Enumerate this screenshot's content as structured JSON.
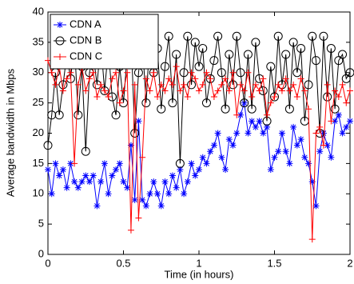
{
  "chart_data": {
    "type": "line",
    "xlabel": "Time (in hours)",
    "ylabel": "Average bandwidth in Mbps",
    "x": [
      0,
      0.025,
      0.05,
      0.075,
      0.1,
      0.125,
      0.15,
      0.175,
      0.2,
      0.225,
      0.25,
      0.275,
      0.3,
      0.325,
      0.35,
      0.375,
      0.4,
      0.425,
      0.45,
      0.475,
      0.5,
      0.525,
      0.55,
      0.575,
      0.6,
      0.625,
      0.65,
      0.675,
      0.7,
      0.725,
      0.75,
      0.775,
      0.8,
      0.825,
      0.85,
      0.875,
      0.9,
      0.925,
      0.95,
      0.975,
      1,
      1.025,
      1.05,
      1.075,
      1.1,
      1.125,
      1.15,
      1.175,
      1.2,
      1.225,
      1.25,
      1.275,
      1.3,
      1.325,
      1.35,
      1.375,
      1.4,
      1.425,
      1.45,
      1.475,
      1.5,
      1.525,
      1.55,
      1.575,
      1.6,
      1.625,
      1.65,
      1.675,
      1.7,
      1.725,
      1.75,
      1.775,
      1.8,
      1.825,
      1.85,
      1.875,
      1.9,
      1.925,
      1.95,
      1.975,
      2
    ],
    "series": [
      {
        "name": "CDN A",
        "color": "#0000ff",
        "marker": "asterisk",
        "values": [
          14,
          10,
          15,
          13,
          14,
          11,
          15,
          12,
          11,
          12,
          13,
          12,
          13,
          8,
          12,
          15,
          10,
          13,
          14,
          15,
          12,
          11,
          18,
          9,
          22,
          9,
          8,
          10,
          12,
          10,
          8,
          12,
          10,
          13,
          11,
          14,
          10,
          12,
          15,
          13,
          14,
          16,
          15,
          17,
          18,
          20,
          16,
          14,
          19,
          18,
          20,
          23,
          25,
          20,
          22,
          21,
          22,
          20,
          21,
          14,
          16,
          17,
          20,
          17,
          15,
          21,
          18,
          19,
          16,
          15,
          12,
          8,
          17,
          20,
          18,
          16,
          22,
          23,
          20,
          21,
          22
        ]
      },
      {
        "name": "CDN B",
        "color": "#000000",
        "marker": "circle",
        "values": [
          18,
          23,
          30,
          23,
          28,
          33,
          29,
          35,
          23,
          31,
          17,
          30,
          33,
          28,
          35,
          27,
          34,
          26,
          23,
          31,
          25,
          33,
          36,
          20,
          30,
          35,
          25,
          36,
          30,
          34,
          24,
          31,
          36,
          25,
          33,
          15,
          30,
          36,
          28,
          35,
          31,
          34,
          25,
          29,
          32,
          36,
          30,
          24,
          33,
          28,
          36,
          30,
          25,
          33,
          24,
          35,
          29,
          27,
          22,
          31,
          26,
          36,
          28,
          33,
          24,
          35,
          30,
          34,
          22,
          28,
          36,
          32,
          20,
          36,
          26,
          34,
          24,
          32,
          33,
          29,
          30
        ]
      },
      {
        "name": "CDN C",
        "color": "#ff0000",
        "marker": "plus",
        "values": [
          32,
          30,
          28,
          31,
          27,
          29,
          30,
          15,
          28,
          31,
          27,
          29,
          30,
          26,
          28,
          27,
          26,
          29,
          30,
          25,
          27,
          30,
          4,
          28,
          6,
          16,
          29,
          27,
          30,
          26,
          28,
          27,
          29,
          28,
          31,
          27,
          28,
          26,
          30,
          29,
          27,
          28,
          30,
          29,
          26,
          27,
          28,
          29,
          27,
          30,
          23,
          28,
          27,
          30,
          26,
          28,
          27,
          29,
          23,
          25,
          26,
          28,
          27,
          29,
          27,
          28,
          26,
          29,
          27,
          24,
          2.5,
          20,
          21,
          18,
          28,
          22,
          27,
          26,
          28,
          25,
          27
        ]
      }
    ],
    "xlim": [
      0,
      2
    ],
    "xticks": [
      0,
      0.5,
      1,
      1.5,
      2
    ],
    "ylim": [
      0,
      40
    ],
    "yticks": [
      0,
      5,
      10,
      15,
      20,
      25,
      30,
      35,
      40
    ],
    "legend": "upper left"
  }
}
